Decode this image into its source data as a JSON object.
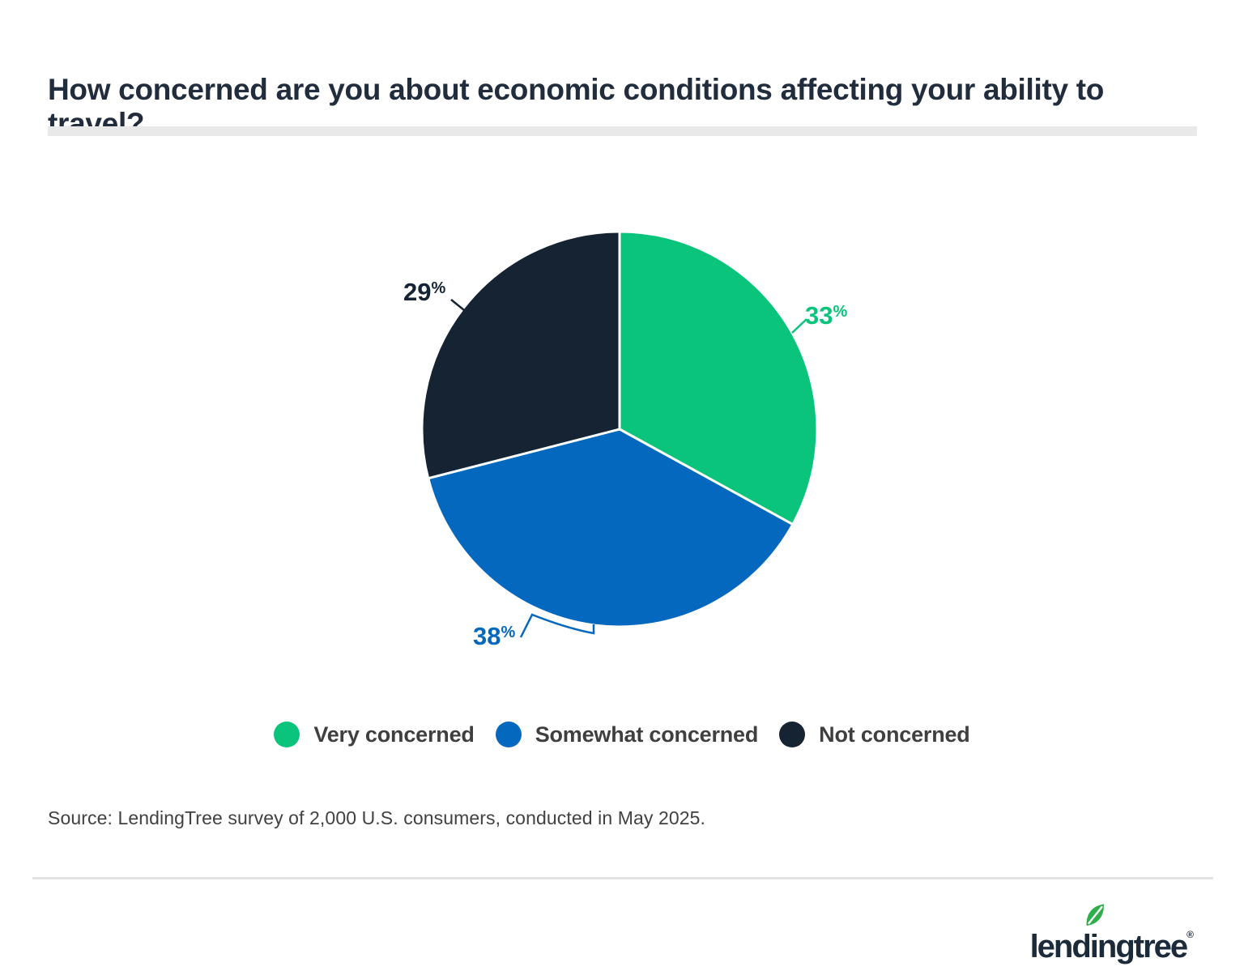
{
  "title": "How concerned are you about economic conditions affecting your ability to travel?",
  "chart_data": {
    "type": "pie",
    "categories": [
      "Very concerned",
      "Somewhat concerned",
      "Not concerned"
    ],
    "values": [
      33,
      38,
      29
    ],
    "labels": [
      "33%",
      "38%",
      "29%"
    ],
    "colors": [
      "#0bc47b",
      "#0568bf",
      "#152332"
    ],
    "percent_sign": "%",
    "start_angle_deg": 0,
    "direction": "clockwise",
    "legend_position": "bottom",
    "slice_border_color": "#ffffff"
  },
  "source_note": "Source: LendingTree survey of 2,000 U.S. consumers, conducted in May 2025.",
  "footer": {
    "logo_text": "lendingtree",
    "registered_mark": "®",
    "logo_color": "#1c2b39",
    "leaf_color": "#2fae4c"
  }
}
